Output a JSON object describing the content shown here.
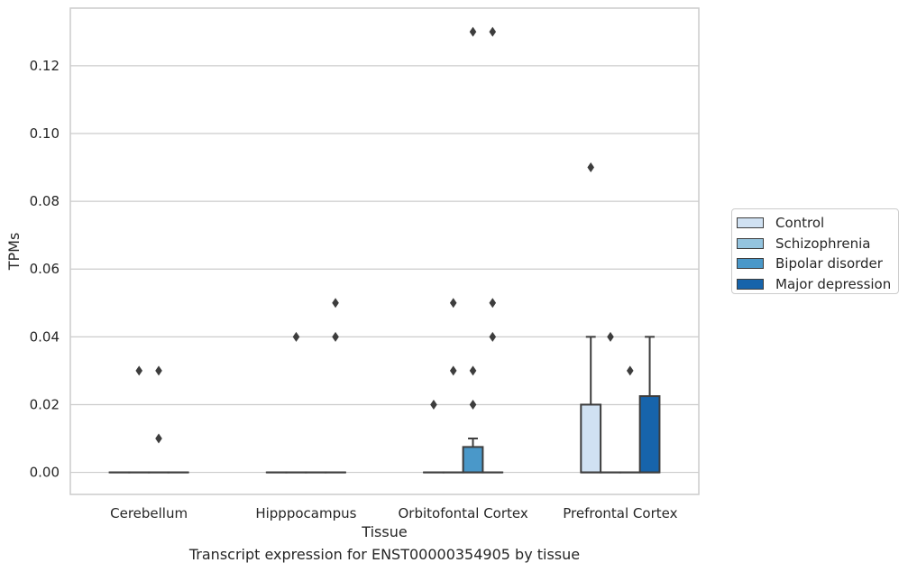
{
  "chart_data": {
    "type": "box",
    "xlabel": "Tissue",
    "ylabel": "TPMs",
    "caption": "Transcript expression for ENST00000354905 by tissue",
    "ylim": [
      -0.0065,
      0.137
    ],
    "yticks": [
      "0.00",
      "0.02",
      "0.04",
      "0.06",
      "0.08",
      "0.10",
      "0.12"
    ],
    "ytick_values": [
      0,
      0.02,
      0.04,
      0.06,
      0.08,
      0.1,
      0.12
    ],
    "grid": true,
    "legend_position": "right",
    "categories": [
      "Cerebellum",
      "Hipppocampus",
      "Orbitofontal Cortex",
      "Prefrontal Cortex"
    ],
    "series": [
      {
        "name": "Control",
        "color": "#d0e1f2",
        "boxes": [
          {
            "q1": 0,
            "median": 0,
            "q3": 0,
            "whisker_low": 0,
            "whisker_high": 0,
            "outliers": []
          },
          {
            "q1": 0,
            "median": 0,
            "q3": 0,
            "whisker_low": 0,
            "whisker_high": 0,
            "outliers": []
          },
          {
            "q1": 0,
            "median": 0,
            "q3": 0,
            "whisker_low": 0,
            "whisker_high": 0,
            "outliers": [
              0.02
            ]
          },
          {
            "q1": 0,
            "median": 0,
            "q3": 0.02,
            "whisker_low": 0,
            "whisker_high": 0.04,
            "outliers": [
              0.09
            ]
          }
        ]
      },
      {
        "name": "Schizophrenia",
        "color": "#94c4df",
        "boxes": [
          {
            "q1": 0,
            "median": 0,
            "q3": 0,
            "whisker_low": 0,
            "whisker_high": 0,
            "outliers": [
              0.03
            ]
          },
          {
            "q1": 0,
            "median": 0,
            "q3": 0,
            "whisker_low": 0,
            "whisker_high": 0,
            "outliers": [
              0.04
            ]
          },
          {
            "q1": 0,
            "median": 0,
            "q3": 0,
            "whisker_low": 0,
            "whisker_high": 0,
            "outliers": [
              0.05,
              0.03
            ]
          },
          {
            "q1": 0,
            "median": 0,
            "q3": 0,
            "whisker_low": 0,
            "whisker_high": 0,
            "outliers": [
              0.04
            ]
          }
        ]
      },
      {
        "name": "Bipolar disorder",
        "color": "#4a98c9",
        "boxes": [
          {
            "q1": 0,
            "median": 0,
            "q3": 0,
            "whisker_low": 0,
            "whisker_high": 0,
            "outliers": [
              0.03,
              0.01
            ]
          },
          {
            "q1": 0,
            "median": 0,
            "q3": 0,
            "whisker_low": 0,
            "whisker_high": 0,
            "outliers": []
          },
          {
            "q1": 0,
            "median": 0,
            "q3": 0.0075,
            "whisker_low": 0,
            "whisker_high": 0.01,
            "outliers": [
              0.13,
              0.03,
              0.02
            ]
          },
          {
            "q1": 0,
            "median": 0,
            "q3": 0,
            "whisker_low": 0,
            "whisker_high": 0,
            "outliers": [
              0.03
            ]
          }
        ]
      },
      {
        "name": "Major depression",
        "color": "#1764ab",
        "boxes": [
          {
            "q1": 0,
            "median": 0,
            "q3": 0,
            "whisker_low": 0,
            "whisker_high": 0,
            "outliers": []
          },
          {
            "q1": 0,
            "median": 0,
            "q3": 0,
            "whisker_low": 0,
            "whisker_high": 0,
            "outliers": [
              0.05,
              0.04
            ]
          },
          {
            "q1": 0,
            "median": 0,
            "q3": 0,
            "whisker_low": 0,
            "whisker_high": 0,
            "outliers": [
              0.13,
              0.05,
              0.04
            ]
          },
          {
            "q1": 0,
            "median": 0,
            "q3": 0.0225,
            "whisker_low": 0,
            "whisker_high": 0.04,
            "outliers": []
          }
        ]
      }
    ]
  }
}
